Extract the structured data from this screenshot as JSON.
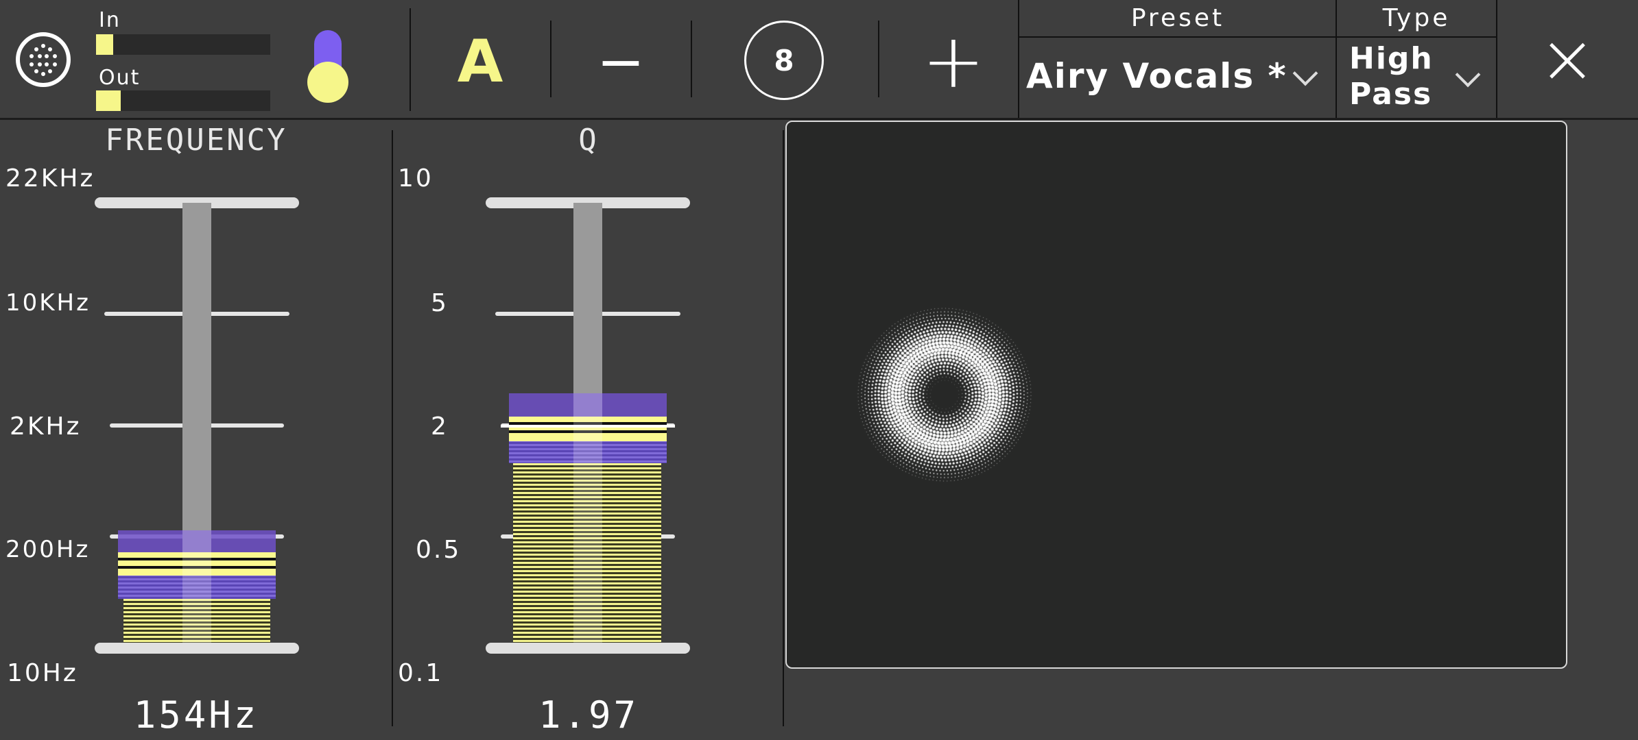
{
  "meters": {
    "in_label": "In",
    "out_label": "Out",
    "in_level": 0.1,
    "out_level": 0.14
  },
  "toolbar": {
    "ab_label": "A",
    "minus_label": "−",
    "count_label": "8",
    "plus_label": "+",
    "close_label": "×"
  },
  "preset": {
    "header": "Preset",
    "value": "Airy Vocals *"
  },
  "type": {
    "header": "Type",
    "value_line1": "High",
    "value_line2": "Pass"
  },
  "frequency": {
    "title": "FREQUENCY",
    "ticks": [
      "22KHz",
      "10KHz",
      "2KHz",
      "200Hz",
      "10Hz"
    ],
    "readout": "154Hz"
  },
  "q": {
    "title": "Q",
    "ticks": [
      "10",
      "5",
      "2",
      "0.5",
      "0.1"
    ],
    "readout": "1.97"
  },
  "colors": {
    "accent_yellow": "#f6f68a",
    "accent_purple": "#6f53c9",
    "pad_bg": "#272827"
  },
  "icons": {
    "logo": "dotted-circle-icon",
    "toggle": "yellow-purple-toggle-icon",
    "minus": "minus-icon",
    "plus": "plus-icon",
    "close": "close-icon",
    "chevron": "chevron-down-icon"
  }
}
